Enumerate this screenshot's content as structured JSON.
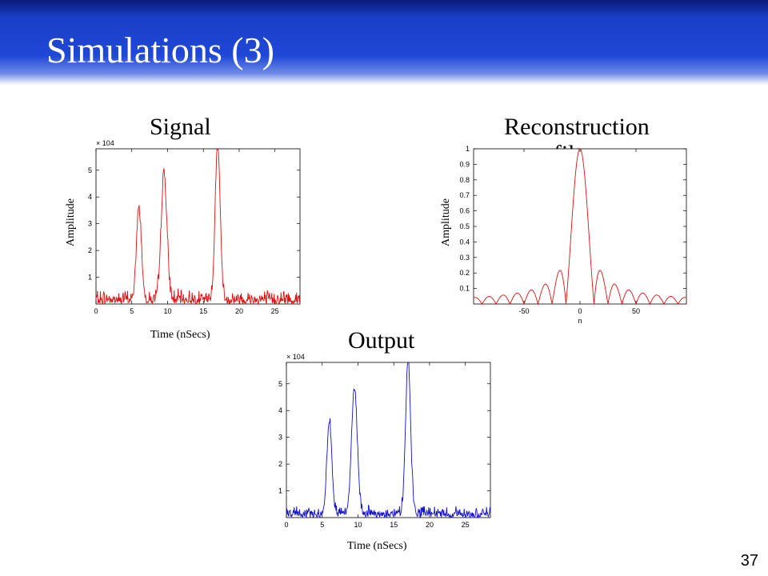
{
  "slide": {
    "title": "Simulations (3)",
    "number": "37"
  },
  "colors": {
    "signal": "#dd1111",
    "filter": "#dd1111",
    "output": "#1111cc",
    "header": "#1f48d6"
  },
  "panels": {
    "signal": {
      "title": "Signal",
      "ylabel": "Amplitude",
      "xlabel": "Time (nSecs)"
    },
    "filter": {
      "title": "Reconstruction filter",
      "ylabel": "Amplitude",
      "xlabel": "n"
    },
    "output": {
      "title": "Output",
      "xlabel": "Time (nSecs)"
    }
  },
  "chart_data": [
    {
      "type": "line",
      "id": "signal",
      "title": "Signal",
      "xlabel": "Time (nSecs)",
      "ylabel": "Amplitude",
      "y_multiplier": "× 10^4",
      "xlim": [
        0,
        28.5
      ],
      "ylim": [
        0,
        5.8
      ],
      "xticks": [
        0,
        5,
        10,
        15,
        20,
        25
      ],
      "yticks": [
        1,
        2,
        3,
        4,
        5
      ],
      "peaks": [
        {
          "x": 6.0,
          "y": 3.45,
          "w": 0.35
        },
        {
          "x": 9.5,
          "y": 4.75,
          "w": 0.4
        },
        {
          "x": 17.0,
          "y": 5.8,
          "w": 0.35
        }
      ],
      "noise_level": 0.6
    },
    {
      "type": "line",
      "id": "filter",
      "title": "Reconstruction filter",
      "xlabel": "n",
      "ylabel": "Amplitude",
      "xlim": [
        -95,
        95
      ],
      "ylim": [
        0,
        1
      ],
      "xticks": [
        -50,
        0,
        50
      ],
      "yticks": [
        0.1,
        0.2,
        0.3,
        0.4,
        0.5,
        0.6,
        0.7,
        0.8,
        0.9,
        1
      ],
      "series_formula": "|sinc(n/12.5)|"
    },
    {
      "type": "line",
      "id": "output",
      "title": "Output",
      "xlabel": "Time (nSecs)",
      "y_multiplier": "× 10^4",
      "xlim": [
        0,
        28.5
      ],
      "ylim": [
        0,
        5.8
      ],
      "xticks": [
        0,
        5,
        10,
        15,
        20,
        25
      ],
      "yticks": [
        1,
        2,
        3,
        4,
        5
      ],
      "peaks": [
        {
          "x": 6.0,
          "y": 3.45,
          "w": 0.35
        },
        {
          "x": 9.5,
          "y": 4.75,
          "w": 0.4
        },
        {
          "x": 17.0,
          "y": 5.8,
          "w": 0.35
        }
      ],
      "noise_level": 0.5
    }
  ]
}
